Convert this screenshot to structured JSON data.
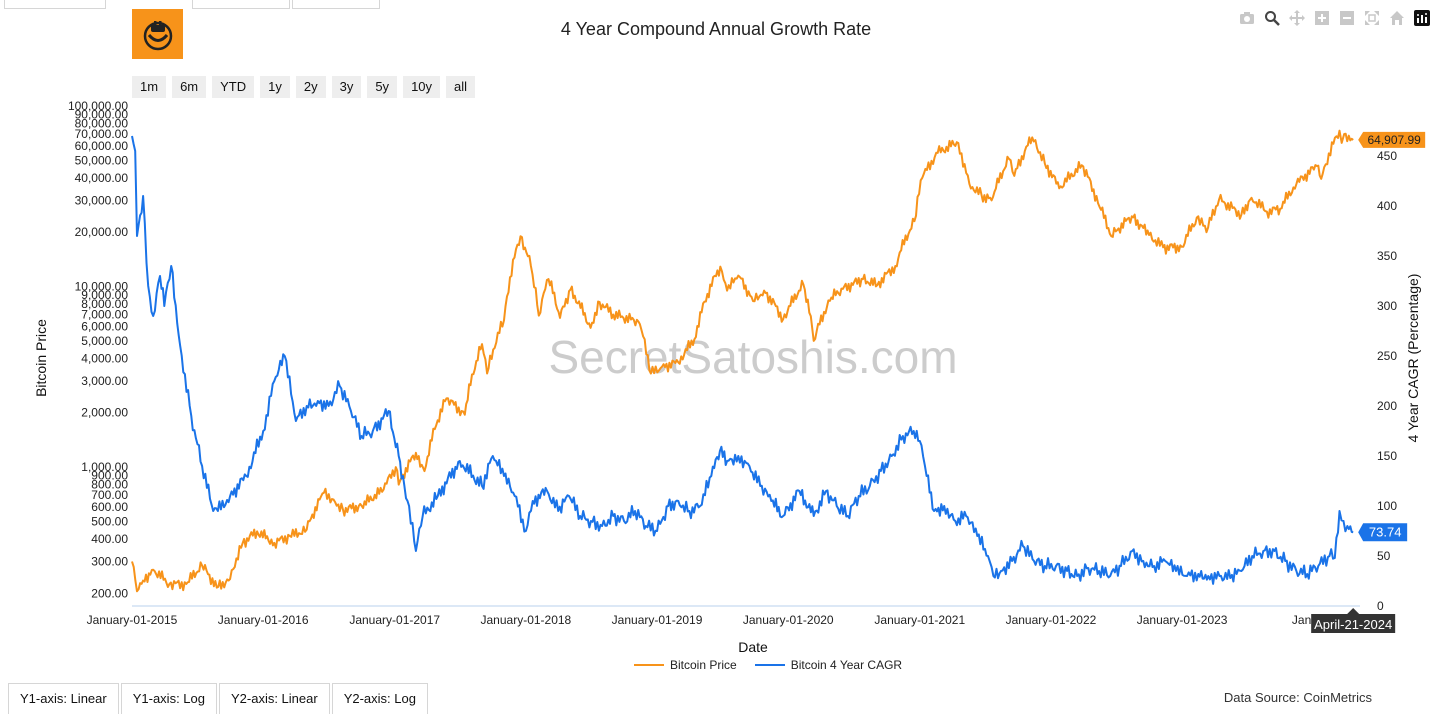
{
  "title": "4 Year Compound Annual Growth Rate",
  "logo_icon": "bitcoin-smile-logo",
  "modebar": [
    {
      "name": "camera-icon"
    },
    {
      "name": "zoom-icon"
    },
    {
      "name": "pan-icon"
    },
    {
      "name": "zoom-in-icon"
    },
    {
      "name": "zoom-out-icon"
    },
    {
      "name": "autoscale-icon"
    },
    {
      "name": "reset-axes-icon"
    },
    {
      "name": "plotly-logo-icon"
    }
  ],
  "range_selector": [
    "1m",
    "6m",
    "YTD",
    "1y",
    "2y",
    "3y",
    "5y",
    "10y",
    "all"
  ],
  "watermark": "SecretSatoshis.com",
  "legend": [
    {
      "label": "Bitcoin Price",
      "color": "#f7931a"
    },
    {
      "label": "Bitcoin 4 Year CAGR",
      "color": "#1a73e8"
    }
  ],
  "bottom_tabs": [
    "Y1-axis: Linear",
    "Y1-axis: Log",
    "Y2-axis: Linear",
    "Y2-axis: Log"
  ],
  "data_source": "Data Source: CoinMetrics",
  "price_label": "64,907.99",
  "cagr_label": "73.74",
  "hover_date": "April-21-2024",
  "chart_data": {
    "type": "line",
    "title": "4 Year Compound Annual Growth Rate",
    "xlabel": "Date",
    "y1label": "Bitcoin Price",
    "y2label": "4 Year CAGR (Percentage)",
    "y1_scale": "log",
    "y1_range": [
      170,
      100000
    ],
    "y2_range": [
      0,
      500
    ],
    "x_range": [
      "2015-01-01",
      "2024-05-10"
    ],
    "x_ticks": [
      "January-01-2015",
      "January-01-2016",
      "January-01-2017",
      "January-01-2018",
      "January-01-2019",
      "January-01-2020",
      "January-01-2021",
      "January-01-2022",
      "January-01-2023",
      "January"
    ],
    "y1_ticks": [
      "200.00",
      "300.00",
      "400.00",
      "500.00",
      "600.00",
      "700.00",
      "800.00",
      "900.00",
      "1,000.00",
      "2,000.00",
      "3,000.00",
      "4,000.00",
      "5,000.00",
      "6,000.00",
      "7,000.00",
      "8,000.00",
      "9,000.00",
      "10,000.00",
      "20,000.00",
      "30,000.00",
      "40,000.00",
      "50,000.00",
      "60,000.00",
      "70,000.00",
      "80,000.00",
      "90,000.00",
      "100,000.00"
    ],
    "y2_ticks": [
      0,
      50,
      100,
      150,
      200,
      250,
      300,
      350,
      400,
      450
    ],
    "grid": false,
    "legend_position": "bottom-center",
    "series": [
      {
        "name": "Bitcoin Price",
        "axis": "y1",
        "color": "#f7931a",
        "points": [
          [
            "2015-01-01",
            300
          ],
          [
            "2015-01-15",
            205
          ],
          [
            "2015-02-01",
            235
          ],
          [
            "2015-03-01",
            270
          ],
          [
            "2015-04-15",
            225
          ],
          [
            "2015-06-01",
            225
          ],
          [
            "2015-07-15",
            285
          ],
          [
            "2015-08-25",
            215
          ],
          [
            "2015-10-01",
            240
          ],
          [
            "2015-11-05",
            380
          ],
          [
            "2015-12-15",
            440
          ],
          [
            "2016-02-01",
            380
          ],
          [
            "2016-03-15",
            415
          ],
          [
            "2016-05-01",
            450
          ],
          [
            "2016-06-18",
            720
          ],
          [
            "2016-07-15",
            660
          ],
          [
            "2016-08-10",
            580
          ],
          [
            "2016-10-01",
            610
          ],
          [
            "2016-12-01",
            750
          ],
          [
            "2017-01-04",
            1000
          ],
          [
            "2017-01-12",
            800
          ],
          [
            "2017-03-01",
            1200
          ],
          [
            "2017-03-25",
            950
          ],
          [
            "2017-05-25",
            2400
          ],
          [
            "2017-07-15",
            1950
          ],
          [
            "2017-09-01",
            4800
          ],
          [
            "2017-09-15",
            3300
          ],
          [
            "2017-11-01",
            6500
          ],
          [
            "2017-12-17",
            19000
          ],
          [
            "2018-01-15",
            13000
          ],
          [
            "2018-02-06",
            6900
          ],
          [
            "2018-03-05",
            11000
          ],
          [
            "2018-04-06",
            6700
          ],
          [
            "2018-05-05",
            9600
          ],
          [
            "2018-06-30",
            5900
          ],
          [
            "2018-07-25",
            8200
          ],
          [
            "2018-09-01",
            7000
          ],
          [
            "2018-11-10",
            6400
          ],
          [
            "2018-12-15",
            3300
          ],
          [
            "2019-01-15",
            3600
          ],
          [
            "2019-03-01",
            3800
          ],
          [
            "2019-04-15",
            5100
          ],
          [
            "2019-06-26",
            12900
          ],
          [
            "2019-07-15",
            9500
          ],
          [
            "2019-08-15",
            11500
          ],
          [
            "2019-09-25",
            8300
          ],
          [
            "2019-10-26",
            9500
          ],
          [
            "2019-12-18",
            6600
          ],
          [
            "2020-02-12",
            10300
          ],
          [
            "2020-03-12",
            5000
          ],
          [
            "2020-04-30",
            8700
          ],
          [
            "2020-06-01",
            9700
          ],
          [
            "2020-07-27",
            11000
          ],
          [
            "2020-09-05",
            10200
          ],
          [
            "2020-10-25",
            13000
          ],
          [
            "2020-12-17",
            23000
          ],
          [
            "2021-01-08",
            40000
          ],
          [
            "2021-02-20",
            55000
          ],
          [
            "2021-04-14",
            63000
          ],
          [
            "2021-05-19",
            37000
          ],
          [
            "2021-06-22",
            32000
          ],
          [
            "2021-07-20",
            30000
          ],
          [
            "2021-09-06",
            51000
          ],
          [
            "2021-09-21",
            41000
          ],
          [
            "2021-11-10",
            67000
          ],
          [
            "2021-12-15",
            48000
          ],
          [
            "2022-01-24",
            35000
          ],
          [
            "2022-03-28",
            47000
          ],
          [
            "2022-05-12",
            29000
          ],
          [
            "2022-06-18",
            19000
          ],
          [
            "2022-08-14",
            24500
          ],
          [
            "2022-10-01",
            19300
          ],
          [
            "2022-11-09",
            16500
          ],
          [
            "2022-12-31",
            16600
          ],
          [
            "2023-02-15",
            24500
          ],
          [
            "2023-03-10",
            20000
          ],
          [
            "2023-04-14",
            30400
          ],
          [
            "2023-06-15",
            25000
          ],
          [
            "2023-07-13",
            31000
          ],
          [
            "2023-08-25",
            26000
          ],
          [
            "2023-10-01",
            27000
          ],
          [
            "2023-11-15",
            37000
          ],
          [
            "2024-01-11",
            46500
          ],
          [
            "2024-01-23",
            39500
          ],
          [
            "2024-03-14",
            73000
          ],
          [
            "2024-03-20",
            62500
          ],
          [
            "2024-03-27",
            70000
          ],
          [
            "2024-04-13",
            64500
          ],
          [
            "2024-04-21",
            64907.99
          ]
        ]
      },
      {
        "name": "Bitcoin 4 Year CAGR",
        "axis": "y2",
        "color": "#1a73e8",
        "points": [
          [
            "2015-01-01",
            470
          ],
          [
            "2015-01-10",
            455
          ],
          [
            "2015-01-15",
            370
          ],
          [
            "2015-02-01",
            410
          ],
          [
            "2015-02-15",
            320
          ],
          [
            "2015-03-01",
            290
          ],
          [
            "2015-03-20",
            330
          ],
          [
            "2015-04-01",
            300
          ],
          [
            "2015-04-20",
            340
          ],
          [
            "2015-05-15",
            260
          ],
          [
            "2015-06-15",
            190
          ],
          [
            "2015-07-15",
            140
          ],
          [
            "2015-08-15",
            95
          ],
          [
            "2015-08-28",
            95
          ],
          [
            "2015-10-01",
            110
          ],
          [
            "2015-11-15",
            130
          ],
          [
            "2016-01-01",
            175
          ],
          [
            "2016-02-01",
            225
          ],
          [
            "2016-03-01",
            250
          ],
          [
            "2016-04-01",
            185
          ],
          [
            "2016-05-01",
            200
          ],
          [
            "2016-06-01",
            205
          ],
          [
            "2016-07-01",
            200
          ],
          [
            "2016-08-01",
            220
          ],
          [
            "2016-09-01",
            195
          ],
          [
            "2016-10-01",
            170
          ],
          [
            "2016-11-01",
            175
          ],
          [
            "2016-12-15",
            195
          ],
          [
            "2017-01-12",
            150
          ],
          [
            "2017-01-28",
            120
          ],
          [
            "2017-02-10",
            100
          ],
          [
            "2017-03-01",
            55
          ],
          [
            "2017-03-20",
            90
          ],
          [
            "2017-05-01",
            110
          ],
          [
            "2017-07-01",
            145
          ],
          [
            "2017-09-01",
            120
          ],
          [
            "2017-10-01",
            150
          ],
          [
            "2017-11-01",
            130
          ],
          [
            "2017-12-01",
            110
          ],
          [
            "2018-01-01",
            75
          ],
          [
            "2018-01-20",
            105
          ],
          [
            "2018-03-01",
            115
          ],
          [
            "2018-04-01",
            95
          ],
          [
            "2018-05-01",
            110
          ],
          [
            "2018-06-01",
            90
          ],
          [
            "2018-07-01",
            85
          ],
          [
            "2018-08-01",
            80
          ],
          [
            "2018-09-01",
            90
          ],
          [
            "2018-10-01",
            85
          ],
          [
            "2018-11-01",
            95
          ],
          [
            "2018-12-01",
            80
          ],
          [
            "2019-01-01",
            75
          ],
          [
            "2019-02-01",
            100
          ],
          [
            "2019-03-01",
            105
          ],
          [
            "2019-04-01",
            95
          ],
          [
            "2019-05-01",
            100
          ],
          [
            "2019-06-01",
            130
          ],
          [
            "2019-06-25",
            155
          ],
          [
            "2019-07-15",
            145
          ],
          [
            "2019-08-15",
            150
          ],
          [
            "2019-09-15",
            140
          ],
          [
            "2019-10-15",
            120
          ],
          [
            "2019-11-15",
            105
          ],
          [
            "2019-12-18",
            90
          ],
          [
            "2020-02-01",
            115
          ],
          [
            "2020-03-12",
            90
          ],
          [
            "2020-04-15",
            115
          ],
          [
            "2020-05-15",
            100
          ],
          [
            "2020-06-15",
            90
          ],
          [
            "2020-07-15",
            110
          ],
          [
            "2020-08-15",
            120
          ],
          [
            "2020-09-15",
            135
          ],
          [
            "2020-10-15",
            150
          ],
          [
            "2020-11-15",
            170
          ],
          [
            "2020-12-15",
            175
          ],
          [
            "2021-01-01",
            165
          ],
          [
            "2021-01-20",
            130
          ],
          [
            "2021-02-10",
            95
          ],
          [
            "2021-03-10",
            100
          ],
          [
            "2021-04-10",
            85
          ],
          [
            "2021-05-10",
            90
          ],
          [
            "2021-06-10",
            70
          ],
          [
            "2021-07-10",
            50
          ],
          [
            "2021-07-25",
            30
          ],
          [
            "2021-08-15",
            35
          ],
          [
            "2021-09-15",
            45
          ],
          [
            "2021-10-15",
            60
          ],
          [
            "2021-11-15",
            45
          ],
          [
            "2021-12-15",
            40
          ],
          [
            "2022-01-15",
            40
          ],
          [
            "2022-02-15",
            35
          ],
          [
            "2022-03-15",
            30
          ],
          [
            "2022-04-15",
            38
          ],
          [
            "2022-05-15",
            35
          ],
          [
            "2022-06-15",
            30
          ],
          [
            "2022-07-15",
            40
          ],
          [
            "2022-08-15",
            55
          ],
          [
            "2022-09-15",
            45
          ],
          [
            "2022-10-15",
            40
          ],
          [
            "2022-11-15",
            45
          ],
          [
            "2022-12-15",
            35
          ],
          [
            "2023-01-15",
            30
          ],
          [
            "2023-02-15",
            32
          ],
          [
            "2023-03-15",
            30
          ],
          [
            "2023-04-15",
            30
          ],
          [
            "2023-05-15",
            28
          ],
          [
            "2023-06-15",
            35
          ],
          [
            "2023-07-15",
            50
          ],
          [
            "2023-08-15",
            55
          ],
          [
            "2023-09-15",
            55
          ],
          [
            "2023-10-15",
            45
          ],
          [
            "2023-11-15",
            35
          ],
          [
            "2023-12-15",
            32
          ],
          [
            "2024-01-15",
            40
          ],
          [
            "2024-02-15",
            50
          ],
          [
            "2024-03-01",
            48
          ],
          [
            "2024-03-14",
            95
          ],
          [
            "2024-03-25",
            85
          ],
          [
            "2024-04-05",
            80
          ],
          [
            "2024-04-21",
            73.74
          ]
        ]
      }
    ]
  }
}
